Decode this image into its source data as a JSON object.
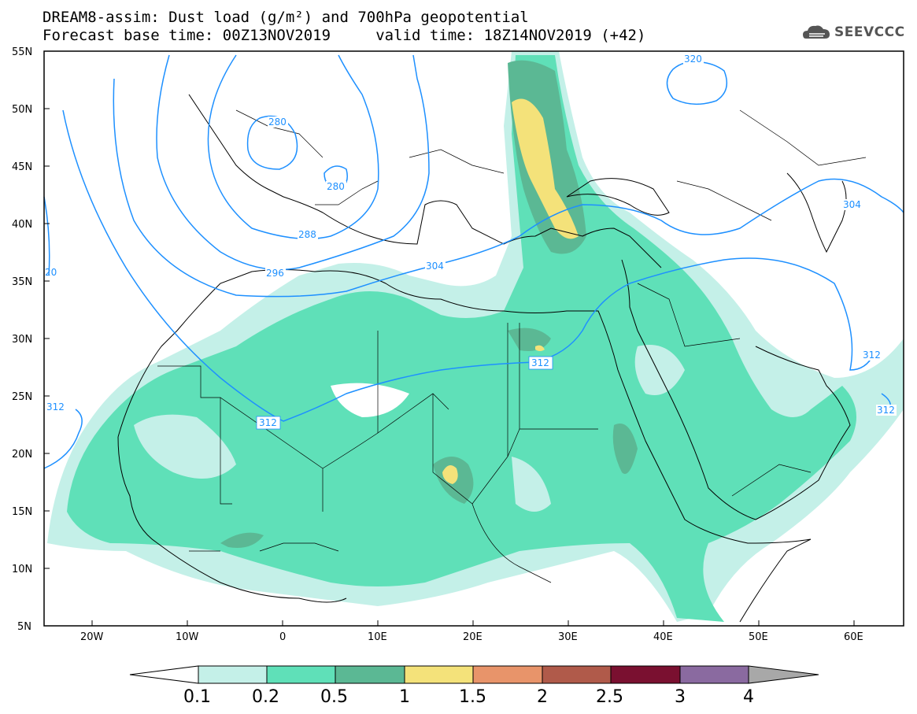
{
  "title": {
    "line1": "DREAM8-assim: Dust load (g/m²) and 700hPa geopotential",
    "line2": "Forecast base time: 00Z13NOV2019     valid time: 18Z14NOV2019 (+42)"
  },
  "logo": {
    "text": "SEEVCCC",
    "icon": "cloud-logo-icon"
  },
  "map": {
    "lat_ticks": [
      "55N",
      "50N",
      "45N",
      "40N",
      "35N",
      "30N",
      "25N",
      "20N",
      "15N",
      "10N",
      "5N"
    ],
    "lon_ticks": [
      "20W",
      "10W",
      "0",
      "10E",
      "20E",
      "30E",
      "40E",
      "50E",
      "60E"
    ],
    "contour_labels": [
      {
        "text": "280"
      },
      {
        "text": "280"
      },
      {
        "text": "288"
      },
      {
        "text": "296"
      },
      {
        "text": "304"
      },
      {
        "text": "304"
      },
      {
        "text": "312"
      },
      {
        "text": "312"
      },
      {
        "text": "312"
      },
      {
        "text": "312"
      },
      {
        "text": "312"
      },
      {
        "text": "320"
      },
      {
        "text": "20"
      }
    ],
    "contour_color": "#1e90ff",
    "coast_color": "#000000"
  },
  "colorbar": {
    "labels": [
      "0.1",
      "0.2",
      "0.5",
      "1",
      "1.5",
      "2",
      "2.5",
      "3",
      "4"
    ],
    "colors": [
      "#ffffff",
      "#c4f0e8",
      "#5fe0b8",
      "#5bb894",
      "#f4e27a",
      "#e8946a",
      "#b05a4a",
      "#7a1030",
      "#8a6aa0",
      "#a8a8a8"
    ]
  }
}
